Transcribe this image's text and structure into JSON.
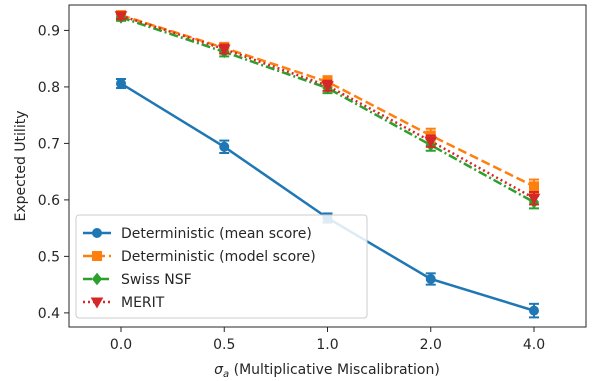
{
  "chart_data": {
    "type": "line",
    "title": "",
    "xlabel": "σa (Multiplicative Miscalibration)",
    "xlabel_parts": {
      "sigma": "σ",
      "sub": "a",
      "rest": " (Multiplicative Miscalibration)"
    },
    "ylabel": "Expected Utility",
    "categories": [
      "0.0",
      "0.5",
      "1.0",
      "2.0",
      "4.0"
    ],
    "ylim": [
      0.375,
      0.945
    ],
    "yticks": [
      "0.4",
      "0.5",
      "0.6",
      "0.7",
      "0.8",
      "0.9"
    ],
    "grid": false,
    "legend_position": "lower-left",
    "series": [
      {
        "name": "Deterministic (mean score)",
        "color": "#1f77b4",
        "marker": "circle",
        "linestyle": "solid",
        "values": [
          0.806,
          0.694,
          0.568,
          0.46,
          0.404
        ],
        "errors": [
          0.008,
          0.011,
          0.008,
          0.01,
          0.012
        ]
      },
      {
        "name": "Deterministic (model score)",
        "color": "#ff7f0e",
        "marker": "square",
        "linestyle": "dashed",
        "values": [
          0.927,
          0.869,
          0.809,
          0.714,
          0.624
        ],
        "errors": [
          0.007,
          0.009,
          0.01,
          0.012,
          0.012
        ]
      },
      {
        "name": "Swiss NSF",
        "color": "#2ca02c",
        "marker": "diamond",
        "linestyle": "dashdot",
        "values": [
          0.923,
          0.862,
          0.798,
          0.697,
          0.596
        ],
        "errors": [
          0.006,
          0.008,
          0.009,
          0.01,
          0.011
        ]
      },
      {
        "name": "MERIT",
        "color": "#d62728",
        "marker": "triangle",
        "linestyle": "dotted",
        "values": [
          0.926,
          0.867,
          0.802,
          0.704,
          0.603
        ],
        "errors": [
          0.006,
          0.008,
          0.009,
          0.01,
          0.011
        ]
      }
    ]
  }
}
